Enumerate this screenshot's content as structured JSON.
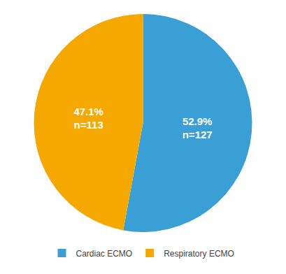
{
  "chart_data": {
    "type": "pie",
    "categories": [
      "Cardiac ECMO",
      "Respiratory ECMO"
    ],
    "values": [
      52.9,
      47.1
    ],
    "value_labels": [
      "52.9%\nn=127",
      "47.1%\nn=113"
    ],
    "colors": [
      "#3a9fd4",
      "#f5a800"
    ],
    "data_labels": true,
    "legend": "bottom"
  }
}
